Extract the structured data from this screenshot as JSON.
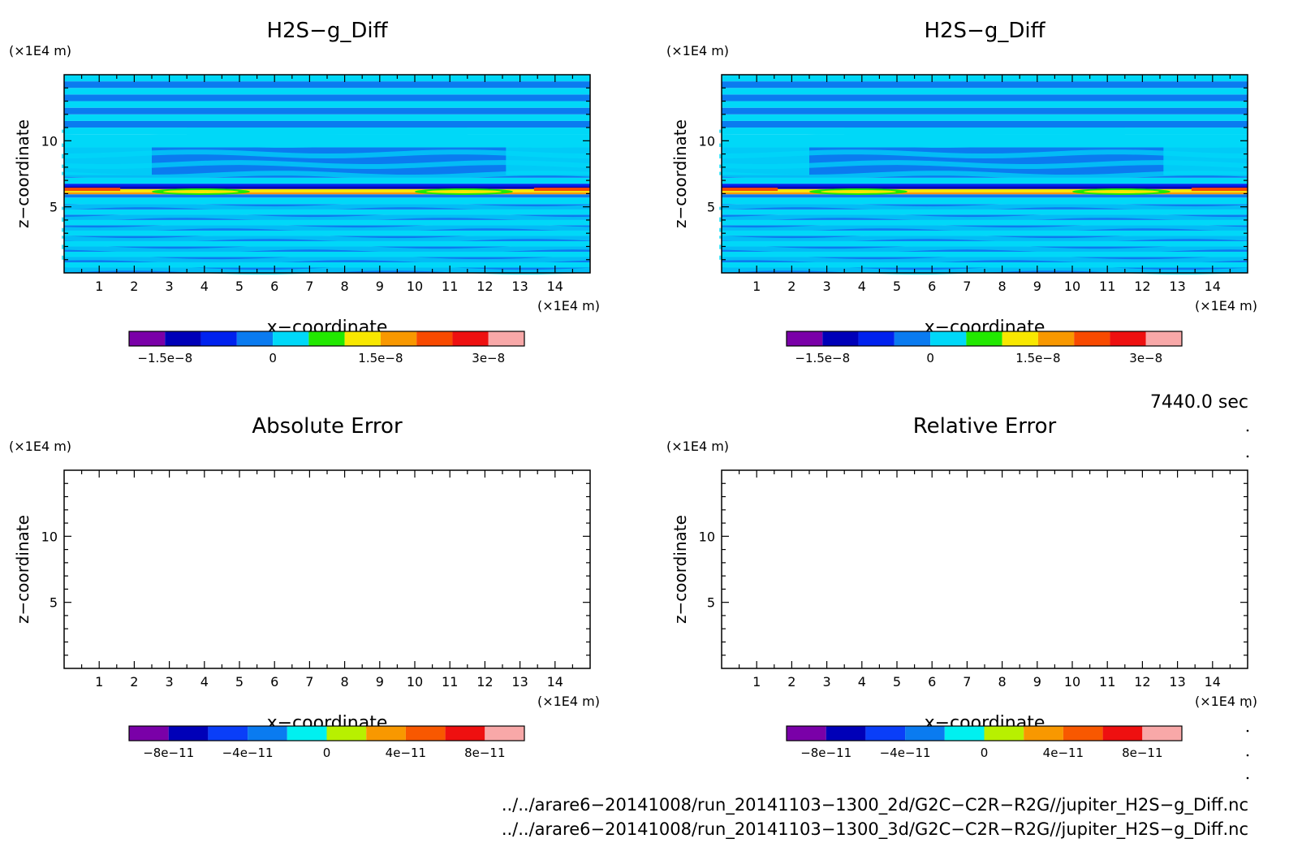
{
  "chart_data": [
    {
      "type": "heatmap",
      "title": "H2S−g_Diff",
      "xlabel": "x−coordinate",
      "ylabel": "z−coordinate",
      "x_unit": "(×1E4 m)",
      "y_unit": "(×1E4 m)",
      "xticks": [
        "1",
        "2",
        "3",
        "4",
        "5",
        "6",
        "7",
        "8",
        "9",
        "10",
        "11",
        "12",
        "13",
        "14"
      ],
      "yticks": [
        "5",
        "10"
      ],
      "xlim": [
        0,
        15
      ],
      "ylim": [
        0,
        15
      ],
      "colorbar": {
        "colors": [
          "#7a00a8",
          "#0000b8",
          "#0022ee",
          "#0a7bf0",
          "#00d8f8",
          "#22e800",
          "#f8e800",
          "#f89800",
          "#f84a00",
          "#ee1010",
          "#f8a8a8"
        ],
        "labels": [
          "−1.5e−8",
          "0",
          "1.5e−8",
          "3e−8"
        ]
      },
      "bands_y": [
        [
          0,
          0.4,
          "a"
        ],
        [
          0.4,
          0.8,
          "b"
        ],
        [
          0.8,
          1.2,
          "a"
        ],
        [
          1.2,
          1.6,
          "b"
        ],
        [
          1.6,
          2.0,
          "a"
        ],
        [
          2.0,
          2.4,
          "b"
        ],
        [
          2.4,
          2.8,
          "a"
        ],
        [
          2.8,
          3.2,
          "b"
        ],
        [
          3.2,
          3.6,
          "a"
        ],
        [
          3.6,
          4.0,
          "b"
        ],
        [
          4.0,
          4.4,
          "a"
        ],
        [
          4.4,
          4.8,
          "b"
        ],
        [
          4.8,
          5.2,
          "a"
        ],
        [
          5.2,
          5.7,
          "b"
        ],
        [
          5.7,
          5.95,
          "c"
        ],
        [
          5.95,
          6.1,
          "d"
        ],
        [
          6.1,
          6.35,
          "e"
        ],
        [
          6.35,
          6.55,
          "f"
        ],
        [
          6.55,
          6.75,
          "g"
        ],
        [
          6.75,
          7.2,
          "b"
        ],
        [
          7.2,
          9.5,
          "h"
        ],
        [
          9.5,
          10.5,
          "h2"
        ],
        [
          10.5,
          11.0,
          "b"
        ],
        [
          11.0,
          11.5,
          "a"
        ],
        [
          11.5,
          12.0,
          "b"
        ],
        [
          12.0,
          12.5,
          "a"
        ],
        [
          12.5,
          13.0,
          "b"
        ],
        [
          13.0,
          13.5,
          "a"
        ],
        [
          13.5,
          14.0,
          "b"
        ],
        [
          14.0,
          14.5,
          "a"
        ],
        [
          14.5,
          15.0,
          "b"
        ]
      ]
    },
    {
      "type": "heatmap",
      "title": "H2S−g_Diff",
      "xlabel": "x−coordinate",
      "ylabel": "z−coordinate",
      "x_unit": "(×1E4 m)",
      "y_unit": "(×1E4 m)",
      "xticks": [
        "1",
        "2",
        "3",
        "4",
        "5",
        "6",
        "7",
        "8",
        "9",
        "10",
        "11",
        "12",
        "13",
        "14"
      ],
      "yticks": [
        "5",
        "10"
      ],
      "xlim": [
        0,
        15
      ],
      "ylim": [
        0,
        15
      ],
      "colorbar": {
        "colors": [
          "#7a00a8",
          "#0000b8",
          "#0022ee",
          "#0a7bf0",
          "#00d8f8",
          "#22e800",
          "#f8e800",
          "#f89800",
          "#f84a00",
          "#ee1010",
          "#f8a8a8"
        ],
        "labels": [
          "−1.5e−8",
          "0",
          "1.5e−8",
          "3e−8"
        ]
      }
    },
    {
      "type": "heatmap",
      "title": "Absolute Error",
      "xlabel": "x−coordinate",
      "ylabel": "z−coordinate",
      "x_unit": "(×1E4 m)",
      "y_unit": "(×1E4 m)",
      "xticks": [
        "1",
        "2",
        "3",
        "4",
        "5",
        "6",
        "7",
        "8",
        "9",
        "10",
        "11",
        "12",
        "13",
        "14"
      ],
      "yticks": [
        "5",
        "10"
      ],
      "xlim": [
        0,
        15
      ],
      "ylim": [
        0,
        15
      ],
      "empty": true,
      "colorbar": {
        "colors": [
          "#7a00a8",
          "#0000b8",
          "#0a3ef8",
          "#0a7bf0",
          "#00f0f0",
          "#b8f000",
          "#f89800",
          "#f85800",
          "#ee1010",
          "#f8a8a8"
        ],
        "labels": [
          "−8e−11",
          "−4e−11",
          "0",
          "4e−11",
          "8e−11"
        ]
      }
    },
    {
      "type": "heatmap",
      "title": "Relative Error",
      "xlabel": "x−coordinate",
      "ylabel": "z−coordinate",
      "x_unit": "(×1E4 m)",
      "y_unit": "(×1E4 m)",
      "xticks": [
        "1",
        "2",
        "3",
        "4",
        "5",
        "6",
        "7",
        "8",
        "9",
        "10",
        "11",
        "12",
        "13",
        "14"
      ],
      "yticks": [
        "5",
        "10"
      ],
      "xlim": [
        0,
        15
      ],
      "ylim": [
        0,
        15
      ],
      "empty": true,
      "colorbar": {
        "colors": [
          "#7a00a8",
          "#0000b8",
          "#0a3ef8",
          "#0a7bf0",
          "#00f0f0",
          "#b8f000",
          "#f89800",
          "#f85800",
          "#ee1010",
          "#f8a8a8"
        ],
        "labels": [
          "−8e−11",
          "−4e−11",
          "0",
          "4e−11",
          "8e−11"
        ]
      }
    }
  ],
  "time_label": "7440.0 sec",
  "file_paths": [
    "../../arare6−20141008/run_20141103−1300_2d/G2C−C2R−R2G//jupiter_H2S−g_Diff.nc",
    "../../arare6−20141008/run_20141103−1300_3d/G2C−C2R−R2G//jupiter_H2S−g_Diff.nc"
  ],
  "field_colors": {
    "a": "#0a7bf0",
    "b": "#00d8f8",
    "c": "#0a7bf0",
    "d": "#f89800",
    "e": "#f8e800",
    "f": "#0000b8",
    "g": "#0022ee",
    "h": "#0a7bf0",
    "h2": "#00d8f8"
  }
}
